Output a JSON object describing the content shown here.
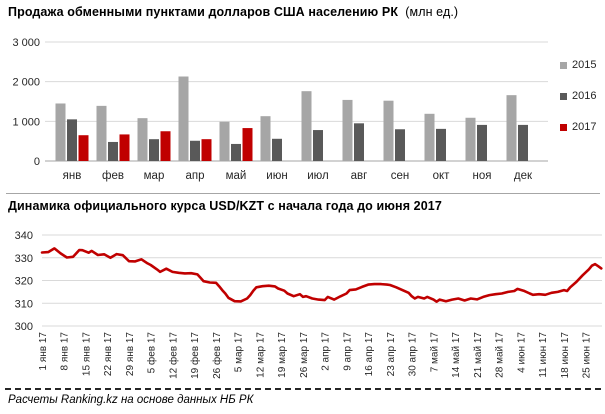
{
  "page": {
    "title_main": "Продажа обменными пунктами долларов США населению РК",
    "title_main_suffix": "(млн ед.)",
    "title_line": "Динамика официального курса USD/KZT с начала года до июня 2017",
    "footer": "Расчеты Ranking.kz на основе данных НБ РК"
  },
  "colors": {
    "series_2015": "#a6a6a6",
    "series_2016": "#595959",
    "accent_2017": "#c00000",
    "grid": "#d9d9d9",
    "axis": "#a6a6a6",
    "text": "#262626"
  },
  "chart_data": [
    {
      "type": "bar",
      "title": "Продажа обменными пунктами долларов США населению РК (млн ед.)",
      "categories": [
        "янв",
        "фев",
        "мар",
        "апр",
        "май",
        "июн",
        "июл",
        "авг",
        "сен",
        "окт",
        "ноя",
        "дек"
      ],
      "series": [
        {
          "name": "2015",
          "color": "#a6a6a6",
          "values": [
            1450,
            1390,
            1080,
            2130,
            990,
            1130,
            1760,
            1540,
            1520,
            1190,
            1090,
            1660
          ]
        },
        {
          "name": "2016",
          "color": "#595959",
          "values": [
            1050,
            480,
            550,
            510,
            430,
            560,
            780,
            950,
            800,
            810,
            910,
            910
          ]
        },
        {
          "name": "2017",
          "color": "#c00000",
          "values": [
            650,
            670,
            750,
            550,
            830,
            null,
            null,
            null,
            null,
            null,
            null,
            null
          ]
        }
      ],
      "ylim": [
        0,
        3000
      ],
      "yticks": [
        {
          "v": 3000,
          "label": "3 000"
        },
        {
          "v": 2000,
          "label": "2 000"
        },
        {
          "v": 1000,
          "label": "1 000"
        },
        {
          "v": 0,
          "label": "0"
        }
      ],
      "legend_position": "right",
      "grid": true
    },
    {
      "type": "line",
      "title": "Динамика официального курса USD/KZT с начала года до июня 2017",
      "color": "#c00000",
      "ylim": [
        300,
        340
      ],
      "yticks": [
        340,
        330,
        320,
        310,
        300
      ],
      "grid": true,
      "x_labels": [
        "1 янв 17",
        "8 янв 17",
        "15 янв 17",
        "22 янв 17",
        "29 янв 17",
        "5 фев 17",
        "12 фев 17",
        "19 фев 17",
        "26 фев 17",
        "5 мар 17",
        "12 мар 17",
        "19 мар 17",
        "26 мар 17",
        "2 апр 17",
        "9 апр 17",
        "16 апр 17",
        "23 апр 17",
        "30 апр 17",
        "7 май 17",
        "14 май 17",
        "21 май 17",
        "28 май 17",
        "4 июн 17",
        "11 июн 17",
        "18 июн 17",
        "25 июн 17"
      ],
      "x_label_day_step": 7,
      "points": [
        [
          0,
          332.3
        ],
        [
          2,
          332.5
        ],
        [
          4,
          334.1
        ],
        [
          6,
          331.9
        ],
        [
          8,
          330.1
        ],
        [
          10,
          330.4
        ],
        [
          12,
          333.4
        ],
        [
          13,
          333.3
        ],
        [
          15,
          332.2
        ],
        [
          16,
          333.0
        ],
        [
          18,
          331.2
        ],
        [
          20,
          331.5
        ],
        [
          22,
          330.0
        ],
        [
          24,
          331.6
        ],
        [
          26,
          331.1
        ],
        [
          28,
          328.5
        ],
        [
          30,
          328.4
        ],
        [
          32,
          329.3
        ],
        [
          34,
          327.5
        ],
        [
          35,
          326.8
        ],
        [
          37,
          324.9
        ],
        [
          38,
          323.8
        ],
        [
          40,
          325.2
        ],
        [
          42,
          323.8
        ],
        [
          44,
          323.4
        ],
        [
          46,
          323.1
        ],
        [
          48,
          323.2
        ],
        [
          50,
          322.7
        ],
        [
          51,
          321.2
        ],
        [
          52,
          319.7
        ],
        [
          54,
          319.1
        ],
        [
          56,
          319.0
        ],
        [
          57,
          317.5
        ],
        [
          58,
          315.8
        ],
        [
          59,
          314.3
        ],
        [
          60,
          312.4
        ],
        [
          62,
          310.9
        ],
        [
          64,
          310.8
        ],
        [
          66,
          312.1
        ],
        [
          67,
          313.6
        ],
        [
          68,
          315.5
        ],
        [
          69,
          317.0
        ],
        [
          71,
          317.5
        ],
        [
          73,
          317.7
        ],
        [
          75,
          317.4
        ],
        [
          76,
          316.5
        ],
        [
          78,
          315.5
        ],
        [
          79,
          314.3
        ],
        [
          81,
          313.1
        ],
        [
          83,
          314.0
        ],
        [
          84,
          312.8
        ],
        [
          85,
          313.1
        ],
        [
          87,
          312.1
        ],
        [
          89,
          311.6
        ],
        [
          91,
          311.4
        ],
        [
          92,
          312.8
        ],
        [
          94,
          311.6
        ],
        [
          96,
          313.0
        ],
        [
          98,
          314.3
        ],
        [
          99,
          315.8
        ],
        [
          101,
          316.1
        ],
        [
          103,
          317.2
        ],
        [
          105,
          318.2
        ],
        [
          107,
          318.4
        ],
        [
          109,
          318.4
        ],
        [
          111,
          318.2
        ],
        [
          112,
          318.0
        ],
        [
          114,
          317.0
        ],
        [
          116,
          315.8
        ],
        [
          118,
          314.6
        ],
        [
          119,
          313.1
        ],
        [
          120,
          312.1
        ],
        [
          121,
          312.8
        ],
        [
          123,
          312.1
        ],
        [
          124,
          312.8
        ],
        [
          126,
          311.6
        ],
        [
          127,
          310.7
        ],
        [
          128,
          311.6
        ],
        [
          130,
          310.9
        ],
        [
          132,
          311.6
        ],
        [
          134,
          312.1
        ],
        [
          136,
          311.2
        ],
        [
          138,
          312.1
        ],
        [
          140,
          311.7
        ],
        [
          142,
          312.8
        ],
        [
          144,
          313.6
        ],
        [
          146,
          314.0
        ],
        [
          148,
          314.3
        ],
        [
          150,
          315.0
        ],
        [
          152,
          315.4
        ],
        [
          153,
          316.3
        ],
        [
          155,
          315.5
        ],
        [
          157,
          314.3
        ],
        [
          158,
          313.7
        ],
        [
          160,
          314.0
        ],
        [
          162,
          313.7
        ],
        [
          164,
          314.6
        ],
        [
          166,
          315.0
        ],
        [
          168,
          315.8
        ],
        [
          169,
          315.4
        ],
        [
          170,
          317.0
        ],
        [
          172,
          319.4
        ],
        [
          174,
          322.3
        ],
        [
          176,
          324.9
        ],
        [
          177,
          326.5
        ],
        [
          178,
          327.2
        ],
        [
          179,
          326.3
        ],
        [
          180,
          325.3
        ]
      ]
    }
  ]
}
